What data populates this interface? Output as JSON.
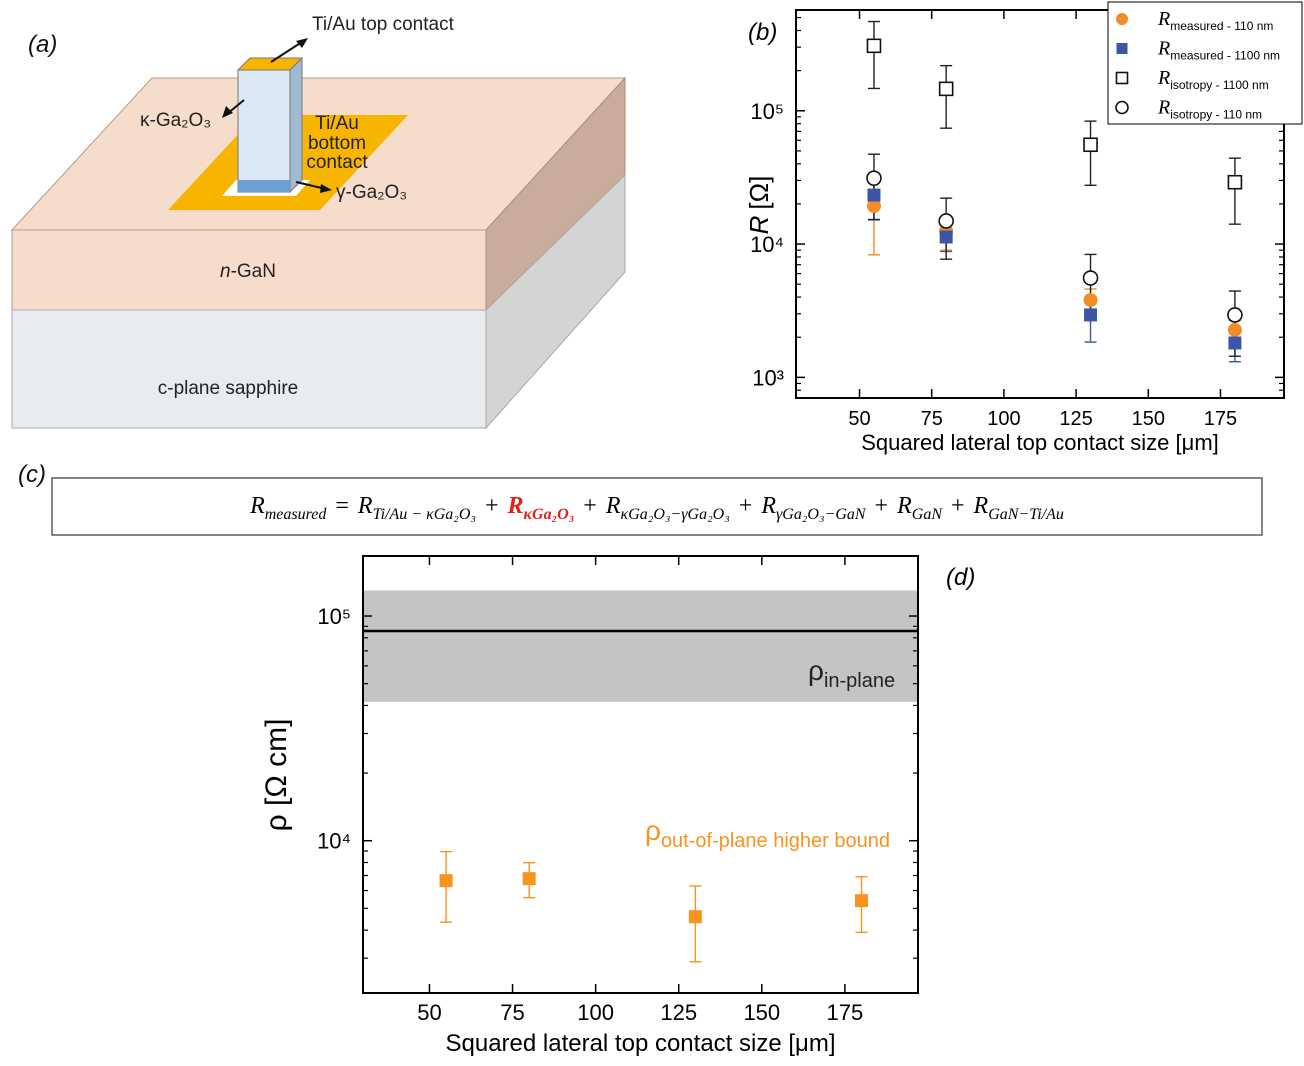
{
  "diagram": {
    "panel_label": "(a)",
    "labels": {
      "top_contact": "Ti/Au top contact",
      "kappa": "κ-Ga₂O₃",
      "bottom_contact": [
        "Ti/Au",
        "bottom",
        "contact"
      ],
      "gamma": "γ-Ga₂O₃",
      "gan": {
        "italic": "n",
        "text": "-GaN"
      },
      "sapphire": "c-plane sapphire"
    }
  },
  "equation": {
    "panel_label": "(c)",
    "lhs": {
      "symbol": "R",
      "sub": "measured"
    },
    "equals": "=",
    "plus": "+",
    "terms": [
      {
        "symbol": "R",
        "sub": "Ti/Au − κGa₂O₃"
      },
      {
        "symbol": "R",
        "sub": "κGa₂O₃",
        "highlight": "#e0201c"
      },
      {
        "symbol": "R",
        "sub": "κGa₂O₃−γGa₂O₃"
      },
      {
        "symbol": "R",
        "sub": "γGa₂O₃−GaN"
      },
      {
        "symbol": "R",
        "sub": "GaN"
      },
      {
        "symbol": "R",
        "sub": "GaN−Ti/Au"
      }
    ]
  },
  "chart_data": [
    {
      "type": "scatter",
      "panel_label": "(b)",
      "xlabel": "Squared lateral top contact size [μm]",
      "ylabel": {
        "symbol": "R",
        "unit": "[Ω]"
      },
      "x": [
        55,
        80,
        130,
        180
      ],
      "xlim": [
        28,
        197
      ],
      "xticks": [
        50,
        75,
        100,
        125,
        150,
        175
      ],
      "yscale": "log",
      "ylim": [
        700,
        570000
      ],
      "yticks": [
        {
          "value": 1000,
          "label": "10³"
        },
        {
          "value": 10000,
          "label": "10⁴"
        },
        {
          "value": 100000,
          "label": "10⁵"
        }
      ],
      "legend": "upper right",
      "series": [
        {
          "name": "R",
          "name_sub": "measured - 110 nm",
          "color": "#f28c28",
          "marker": "circle",
          "filled": true,
          "values": [
            19300,
            12500,
            3800,
            2270
          ],
          "errors": [
            11000,
            3500,
            800,
            400
          ]
        },
        {
          "name": "R",
          "name_sub": "measured - 1100 nm",
          "color": "#3c55a5",
          "marker": "square",
          "filled": true,
          "values": [
            23300,
            11300,
            2940,
            1810
          ],
          "errors": [
            8000,
            2500,
            1100,
            500
          ]
        },
        {
          "name": "R",
          "name_sub": "isotropy - 1100 nm",
          "color": "#111111",
          "marker": "square",
          "filled": false,
          "values": [
            307000,
            146000,
            55600,
            29100
          ],
          "errors": [
            160000,
            72000,
            28000,
            15000
          ]
        },
        {
          "name": "R",
          "name_sub": "isotropy - 110 nm",
          "color": "#111111",
          "marker": "circle",
          "filled": false,
          "values": [
            31200,
            14900,
            5560,
            2940
          ],
          "errors": [
            16000,
            7200,
            2800,
            1500
          ]
        }
      ]
    },
    {
      "type": "scatter",
      "panel_label": "(d)",
      "xlabel": "Squared lateral top contact size [μm]",
      "ylabel": "ρ [Ω cm]",
      "x": [
        55,
        80,
        130,
        180
      ],
      "xlim": [
        30,
        197
      ],
      "xticks": [
        50,
        75,
        100,
        125,
        150,
        175
      ],
      "yscale": "log",
      "ylim": [
        2100,
        185000
      ],
      "yticks": [
        {
          "value": 10000,
          "label": "10⁴"
        },
        {
          "value": 100000,
          "label": "10⁵"
        }
      ],
      "band": [
        41500,
        130000
      ],
      "band_color": "#c4c4c4",
      "hline": 85800,
      "annotations": [
        {
          "text": "ρ",
          "subscript": "in-plane",
          "color": "#222222"
        },
        {
          "text": "ρ",
          "subscript": "out-of-plane higher bound",
          "color": "#f7941d"
        }
      ],
      "series": [
        {
          "color": "#f7941d",
          "marker": "square",
          "filled": true,
          "values": [
            6640,
            6780,
            4590,
            5410
          ],
          "errors": [
            2300,
            1200,
            1700,
            1500
          ]
        }
      ]
    }
  ]
}
